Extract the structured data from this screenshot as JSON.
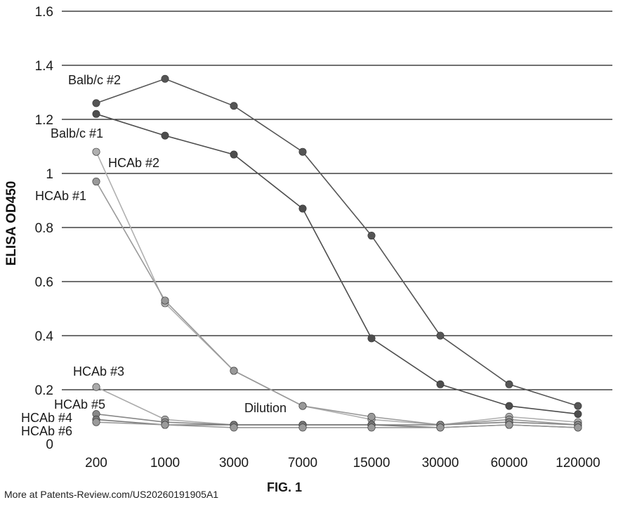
{
  "chart_data": {
    "type": "line",
    "ylabel": "ELISA OD450",
    "xlabel": "Dilution",
    "categories": [
      "200",
      "1000",
      "3000",
      "7000",
      "15000",
      "30000",
      "60000",
      "120000"
    ],
    "yticks": [
      "0",
      "0.2",
      "0.4",
      "0.6",
      "0.8",
      "1",
      "1.2",
      "1.4",
      "1.6"
    ],
    "ylim": [
      0,
      1.6
    ],
    "grid": true,
    "series": [
      {
        "name": "Balb/c #2",
        "color": "#555555",
        "values": [
          1.26,
          1.35,
          1.25,
          1.08,
          0.77,
          0.4,
          0.22,
          0.14
        ]
      },
      {
        "name": "Balb/c #1",
        "color": "#4d4d4d",
        "values": [
          1.22,
          1.14,
          1.07,
          0.87,
          0.39,
          0.22,
          0.14,
          0.11
        ]
      },
      {
        "name": "HCAb #2",
        "color": "#b0b0b0",
        "values": [
          1.08,
          0.52,
          0.27,
          0.14,
          0.09,
          0.07,
          0.1,
          0.08
        ]
      },
      {
        "name": "HCAb #1",
        "color": "#999999",
        "values": [
          0.97,
          0.53,
          0.27,
          0.14,
          0.1,
          0.07,
          0.09,
          0.07
        ]
      },
      {
        "name": "HCAb #3",
        "color": "#aaaaaa",
        "values": [
          0.21,
          0.09,
          0.07,
          0.07,
          0.07,
          0.07,
          0.08,
          0.07
        ]
      },
      {
        "name": "HCAb #5",
        "color": "#888888",
        "values": [
          0.11,
          0.08,
          0.07,
          0.07,
          0.07,
          0.07,
          0.08,
          0.07
        ]
      },
      {
        "name": "HCAb #4",
        "color": "#777777",
        "values": [
          0.09,
          0.07,
          0.07,
          0.07,
          0.07,
          0.06,
          0.07,
          0.06
        ]
      },
      {
        "name": "HCAb #6",
        "color": "#9a9a9a",
        "values": [
          0.08,
          0.07,
          0.06,
          0.06,
          0.06,
          0.06,
          0.07,
          0.06
        ]
      }
    ]
  },
  "figure_label": "FIG. 1",
  "footer": "More at Patents-Review.com/US20260191905A1"
}
